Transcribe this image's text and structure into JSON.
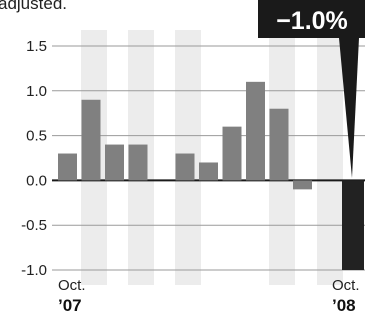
{
  "title_fragment": "adjusted.",
  "callout": "−1.0%",
  "colors": {
    "bar": "#808080",
    "highlight_bar": "#222222",
    "callout_bg": "#1a1a1a",
    "stripe": "#ececec",
    "grid": "#9a9a9a",
    "zero_line": "#1a1a1a"
  },
  "chart_data": {
    "type": "bar",
    "x_start_label": "Oct.",
    "x_start_year": "’07",
    "x_end_label": "Oct.",
    "x_end_year": "’08",
    "values": [
      0.3,
      0.9,
      0.4,
      0.4,
      null,
      0.3,
      0.2,
      0.6,
      1.1,
      0.8,
      -0.1,
      null,
      -1.0
    ],
    "highlight_last": true,
    "yticks": [
      "1.5",
      "1.0",
      "0.5",
      "0.0",
      "-0.5",
      "-1.0"
    ],
    "ytick_values": [
      1.5,
      1.0,
      0.5,
      0.0,
      -0.5,
      -1.0
    ],
    "ylim": [
      -1.0,
      1.5
    ],
    "grid": true
  }
}
